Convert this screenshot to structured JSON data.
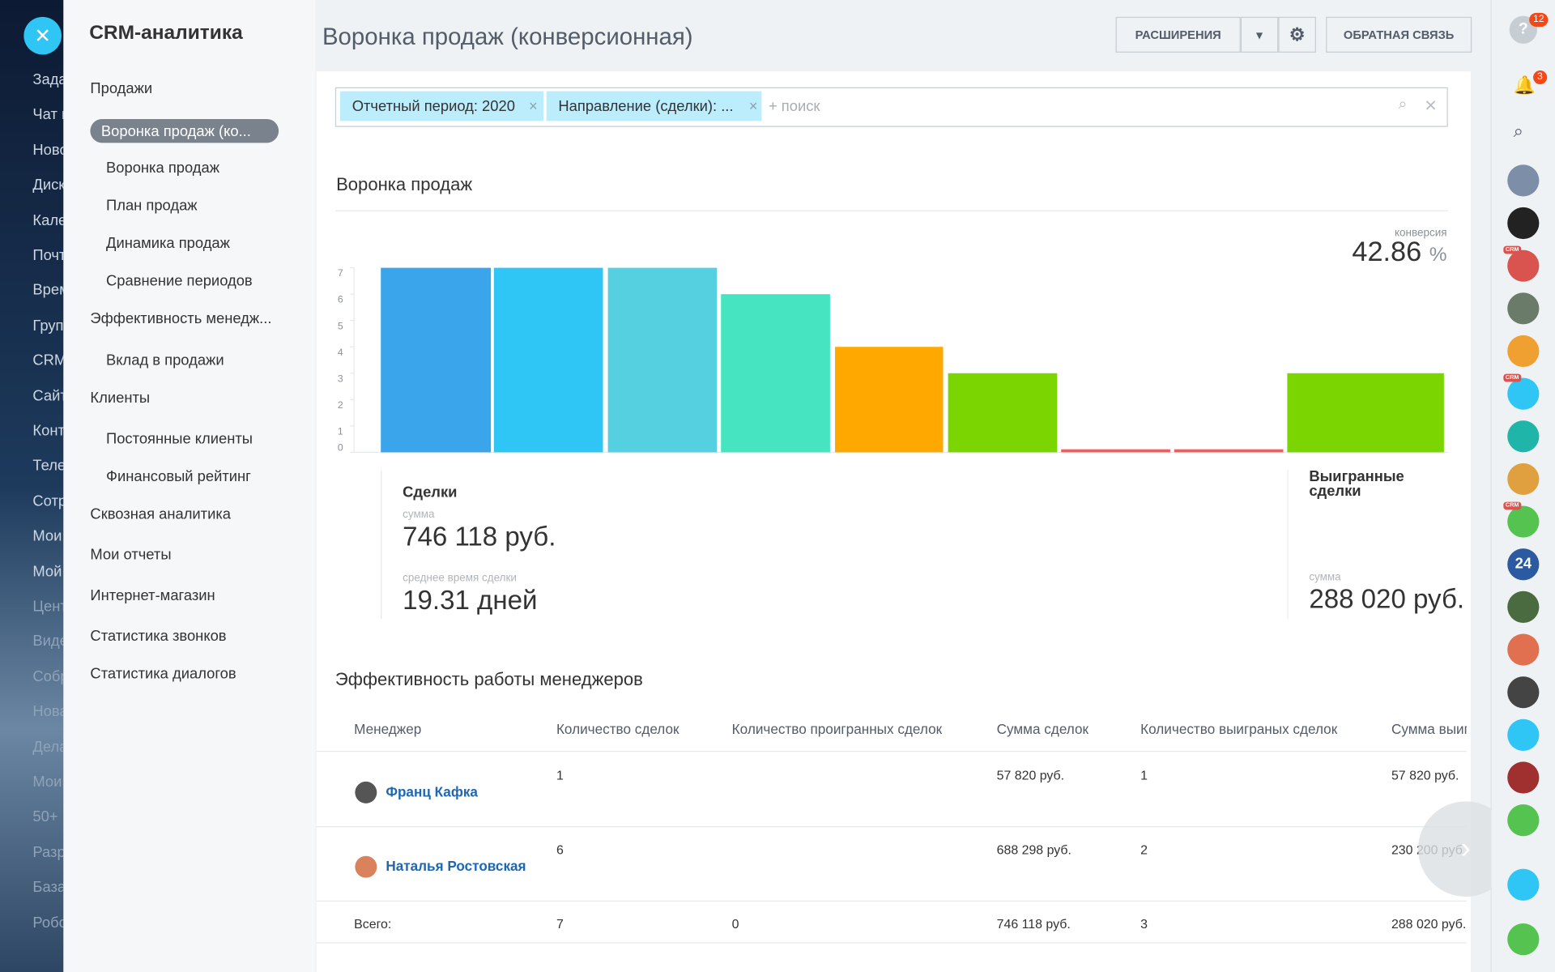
{
  "left_nav": {
    "items": [
      "Зада",
      "Чат и",
      "Ново",
      "Диск",
      "Кале",
      "Почт",
      "Врем",
      "Груп",
      "CRM",
      "Сайт",
      "Конт",
      "Теле",
      "Сотр",
      "Мои",
      "Мой",
      "Цент",
      "Виде",
      "Собр",
      "Нова",
      "Дела",
      "Мои",
      "50+",
      "Разр",
      "База",
      "Робо"
    ]
  },
  "sidebar": {
    "title": "CRM-аналитика",
    "items": [
      {
        "label": "Продажи",
        "level": 0
      },
      {
        "label": "Воронка продаж (ко...",
        "level": 0,
        "active": true
      },
      {
        "label": "Воронка продаж",
        "level": 1
      },
      {
        "label": "План продаж",
        "level": 1
      },
      {
        "label": "Динамика продаж",
        "level": 1
      },
      {
        "label": "Сравнение периодов",
        "level": 1
      },
      {
        "label": "Эффективность менедж...",
        "level": 0
      },
      {
        "label": "Вклад в продажи",
        "level": 1
      },
      {
        "label": "Клиенты",
        "level": 0
      },
      {
        "label": "Постоянные клиенты",
        "level": 1
      },
      {
        "label": "Финансовый рейтинг",
        "level": 1
      },
      {
        "label": "Сквозная аналитика",
        "level": 0
      },
      {
        "label": "Мои отчеты",
        "level": 0
      },
      {
        "label": "Интернет-магазин",
        "level": 0
      },
      {
        "label": "Статистика звонков",
        "level": 0
      },
      {
        "label": "Статистика диалогов",
        "level": 0
      }
    ]
  },
  "header": {
    "title": "Воронка продаж (конверсионная)",
    "extensions": "РАСШИРЕНИЯ",
    "feedback": "ОБРАТНАЯ СВЯЗЬ"
  },
  "filter": {
    "tags": [
      "Отчетный период: 2020",
      "Направление (сделки): ..."
    ],
    "placeholder": "+ поиск"
  },
  "funnel": {
    "conversion_label": "конверсия",
    "conversion": 42.86,
    "conversion_unit": "%"
  },
  "chart_data": {
    "type": "bar",
    "title": "Воронка продаж",
    "values": [
      7,
      7,
      7,
      6,
      4,
      3,
      0,
      0,
      3
    ],
    "colors": [
      "#3ba5ec",
      "#2fc6f6",
      "#55d0e0",
      "#47e4c2",
      "#ffa900",
      "#7bd500",
      "#ff5752",
      "#ff5752",
      "#7bd500"
    ],
    "ylim": [
      0,
      7
    ],
    "yticks": [
      0,
      1,
      2,
      3,
      4,
      5,
      6,
      7
    ]
  },
  "stats": {
    "deals": {
      "title": "Сделки",
      "sum_label": "сумма",
      "sum": "746 118 руб.",
      "avg_label": "среднее время сделки",
      "avg": "19.31 дней"
    },
    "won": {
      "title": "Выигранные сделки",
      "sum_label": "сумма",
      "sum": "288 020 руб."
    }
  },
  "table": {
    "title": "Эффективность работы менеджеров",
    "headers": [
      "Менеджер",
      "Количество сделок",
      "Количество проигранных сделок",
      "Сумма сделок",
      "Количество выиграных сделок",
      "Сумма выиг"
    ],
    "rows": [
      [
        "Франц Кафка",
        1,
        null,
        "57 820 руб.",
        1,
        "57 820 руб."
      ],
      [
        "Наталья Ростовская",
        6,
        null,
        "688 298 руб.",
        2,
        "230 200 руб."
      ]
    ],
    "total": [
      "Всего:",
      7,
      0,
      "746 118 руб.",
      3,
      "288 020 руб."
    ]
  },
  "right_bar": {
    "help_badge": 12,
    "notify_badge": 3,
    "crm_label": "CRM",
    "b24": 24
  }
}
